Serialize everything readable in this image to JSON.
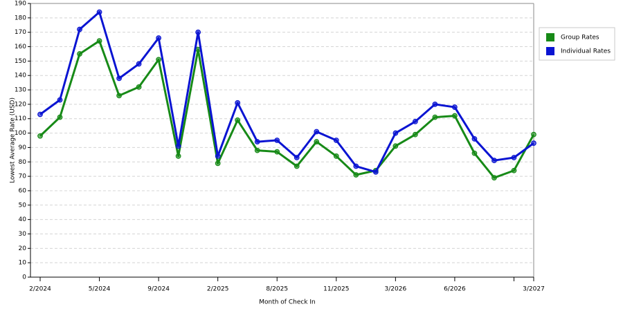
{
  "chart_data": {
    "type": "line",
    "x_label": "Month of Check In",
    "y_label": "Lowest Average Rate (USD)",
    "categories": [
      "2/2024",
      null,
      null,
      "5/2024",
      null,
      null,
      "9/2024",
      null,
      null,
      "2/2025",
      null,
      null,
      "8/2025",
      null,
      null,
      "11/2025",
      null,
      null,
      "3/2026",
      null,
      null,
      "6/2026",
      null,
      null,
      null,
      "3/2027"
    ],
    "series": [
      {
        "name": "Group Rates",
        "color": "#178a17",
        "values": [
          98,
          111,
          155,
          164,
          126,
          132,
          151,
          84,
          158,
          79,
          109,
          88,
          87,
          77,
          94,
          84,
          71,
          74,
          91,
          99,
          111,
          112,
          86,
          69,
          74,
          99
        ]
      },
      {
        "name": "Individual Rates",
        "color": "#0a14d2",
        "values": [
          113,
          123,
          172,
          184,
          138,
          148,
          166,
          91,
          170,
          84,
          121,
          94,
          95,
          83,
          101,
          95,
          77,
          73,
          100,
          108,
          120,
          118,
          96,
          81,
          83,
          93
        ]
      }
    ],
    "ylim": [
      0,
      190
    ],
    "yticks": [
      0,
      10,
      20,
      30,
      40,
      50,
      60,
      70,
      80,
      90,
      100,
      110,
      120,
      130,
      140,
      150,
      160,
      170,
      180,
      190
    ],
    "grid": true,
    "legend": "right"
  }
}
